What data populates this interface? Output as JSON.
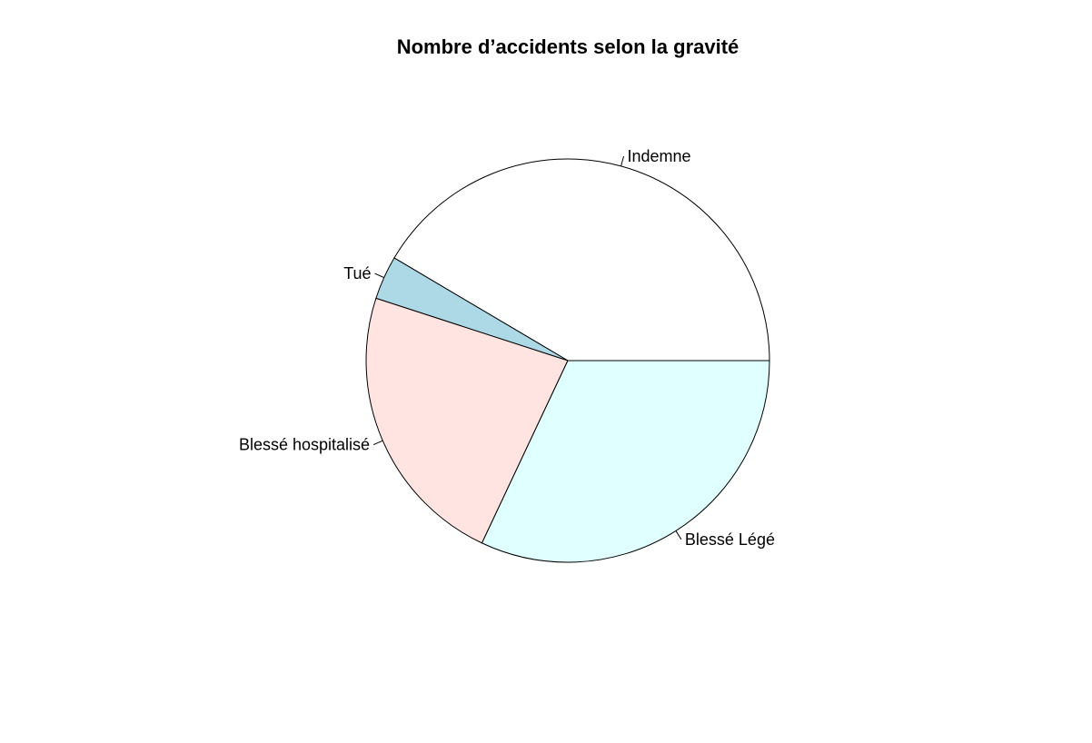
{
  "chart_data": {
    "type": "pie",
    "title": "Nombre d’accidents selon la gravité",
    "start": "3 o'clock",
    "direction": "counterclockwise",
    "slices": [
      {
        "label": "Indemne",
        "value": 41.5,
        "color": "#ffffff"
      },
      {
        "label": "Tué",
        "value": 3.5,
        "color": "#add8e6"
      },
      {
        "label": "Blessé hospitalisé",
        "value": 23.0,
        "color": "#ffe4e1"
      },
      {
        "label": "Blessé Légé",
        "value": 32.0,
        "color": "#e0ffff"
      }
    ]
  }
}
